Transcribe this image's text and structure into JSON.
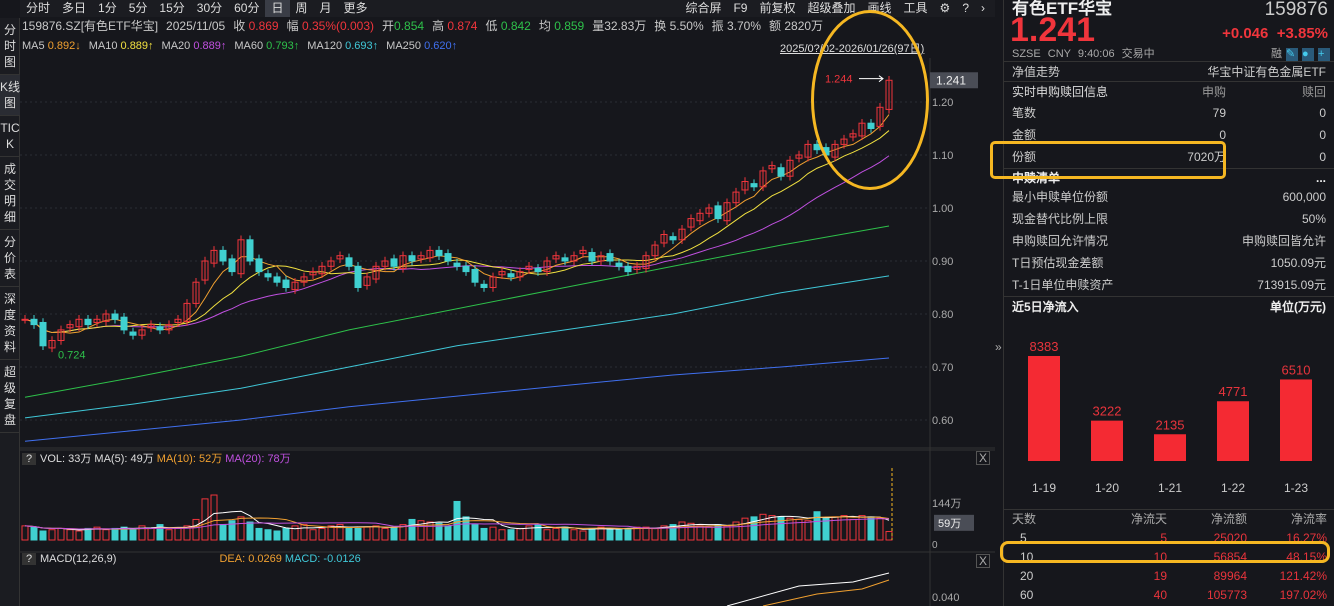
{
  "toolbar": {
    "periods": [
      "分时",
      "多日",
      "1分",
      "5分",
      "15分",
      "30分",
      "60分",
      "日",
      "周",
      "月",
      "更多"
    ],
    "selected": "日",
    "right": [
      "综合屏",
      "F9",
      "前复权",
      "超级叠加",
      "画线",
      "工具"
    ]
  },
  "sidebar": [
    "分时图",
    "K线图",
    "TICK",
    "成交明细",
    "分价表",
    "深度资料",
    "超级复盘"
  ],
  "info": {
    "symbol": "159876.SZ[有色ETF华宝]",
    "date": "2025/11/05",
    "close_label": "收",
    "close": "0.869",
    "chg_label": "幅",
    "chg": "0.35%(0.003)",
    "open_label": "开",
    "open": "0.854",
    "high_label": "高",
    "high": "0.874",
    "low_label": "低",
    "low": "0.842",
    "avg_label": "均",
    "avg": "0.859",
    "vol": "量32.83万",
    "turnover": "换 5.50%",
    "amp": "振 3.70%",
    "amount": "额 2820万"
  },
  "ma": [
    {
      "label": "MA5",
      "value": "0.892↓",
      "color": "#f0a030"
    },
    {
      "label": "MA10",
      "value": "0.889↑",
      "color": "#f0e040"
    },
    {
      "label": "MA20",
      "value": "0.889↑",
      "color": "#c050e0"
    },
    {
      "label": "MA60",
      "value": "0.793↑",
      "color": "#2ec04a"
    },
    {
      "label": "MA120",
      "value": "0.693↑",
      "color": "#40c8d8"
    },
    {
      "label": "MA250",
      "value": "0.620↑",
      "color": "#4070f0"
    }
  ],
  "range": "2025/0?/02-2026/01/26(97日)",
  "chart_data": [
    {
      "type": "candlestick",
      "ylim": [
        0.58,
        1.26
      ],
      "yticks": [
        "1.20",
        "1.10",
        "1.00",
        "0.90",
        "0.80",
        "0.70",
        "0.60"
      ],
      "current_price_label": "1.241",
      "high_marker": "1.244",
      "low_marker": "0.724",
      "close": [
        0.79,
        0.78,
        0.74,
        0.75,
        0.77,
        0.78,
        0.79,
        0.78,
        0.79,
        0.8,
        0.79,
        0.77,
        0.76,
        0.77,
        0.78,
        0.77,
        0.78,
        0.79,
        0.82,
        0.86,
        0.9,
        0.92,
        0.9,
        0.88,
        0.94,
        0.9,
        0.88,
        0.87,
        0.86,
        0.85,
        0.86,
        0.87,
        0.88,
        0.89,
        0.9,
        0.91,
        0.89,
        0.85,
        0.87,
        0.89,
        0.9,
        0.89,
        0.91,
        0.9,
        0.91,
        0.92,
        0.91,
        0.9,
        0.89,
        0.88,
        0.86,
        0.85,
        0.87,
        0.88,
        0.87,
        0.88,
        0.89,
        0.88,
        0.9,
        0.91,
        0.9,
        0.91,
        0.92,
        0.9,
        0.91,
        0.9,
        0.89,
        0.88,
        0.89,
        0.91,
        0.93,
        0.95,
        0.94,
        0.96,
        0.98,
        0.99,
        1.0,
        0.98,
        1.01,
        1.03,
        1.05,
        1.04,
        1.07,
        1.08,
        1.06,
        1.09,
        1.1,
        1.12,
        1.11,
        1.1,
        1.12,
        1.13,
        1.14,
        1.16,
        1.15,
        1.19,
        1.241
      ],
      "ma60": [
        0.643,
        0.68,
        0.72,
        0.77,
        0.81,
        0.85,
        0.89,
        0.93,
        0.966
      ],
      "ma120": [
        0.604,
        0.63,
        0.66,
        0.7,
        0.74,
        0.77,
        0.8,
        0.84,
        0.872
      ],
      "ma250": [
        0.56,
        0.58,
        0.6,
        0.625,
        0.645,
        0.665,
        0.685,
        0.7,
        0.717
      ]
    },
    {
      "type": "bar",
      "title": "VOL: 33万",
      "ma5": "MA(5): 49万",
      "ma10": "MA(10): 52万",
      "ma20": "MA(20): 78万",
      "yticks": [
        "144万",
        "0"
      ],
      "current_label": "59万",
      "values": [
        55,
        50,
        35,
        40,
        45,
        40,
        35,
        45,
        50,
        40,
        45,
        50,
        40,
        55,
        45,
        60,
        40,
        45,
        55,
        80,
        160,
        175,
        60,
        75,
        90,
        70,
        45,
        40,
        35,
        45,
        55,
        60,
        40,
        45,
        55,
        60,
        50,
        45,
        50,
        55,
        45,
        50,
        60,
        80,
        75,
        70,
        65,
        55,
        150,
        90,
        60,
        45,
        50,
        40,
        40,
        45,
        55,
        60,
        40,
        45,
        50,
        40,
        35,
        45,
        50,
        45,
        40,
        45,
        50,
        50,
        45,
        55,
        60,
        70,
        65,
        55,
        50,
        60,
        55,
        70,
        85,
        90,
        100,
        95,
        90,
        85,
        80,
        75,
        110,
        85,
        90,
        95,
        80,
        95,
        90,
        85,
        33
      ]
    },
    {
      "type": "line",
      "title": "MACD(12,26,9)",
      "dea": "DEA: 0.0269",
      "macd": "MACD: -0.0126",
      "yticks": [
        "0.040"
      ]
    }
  ],
  "quote": {
    "name": "有色ETF华宝",
    "code": "159876",
    "price": "1.241",
    "change": "+0.046",
    "pct": "+3.85%",
    "exchange": "SZSE",
    "currency": "CNY",
    "time": "9:40:06",
    "status": "交易中",
    "margin": "融"
  },
  "nav": {
    "label": "净值走势",
    "value": "华宝中证有色金属ETF"
  },
  "realtime": {
    "title": "实时申购赎回信息",
    "col1": "申购",
    "col2": "赎回",
    "rows": [
      {
        "label": "笔数",
        "a": "79",
        "b": "0"
      },
      {
        "label": "金额",
        "a": "0",
        "b": "0"
      },
      {
        "label": "份额",
        "a": "7020万",
        "b": "0"
      }
    ]
  },
  "list": {
    "title": "申赎清单",
    "more": "...",
    "rows": [
      {
        "label": "最小申赎单位份额",
        "value": "600,000"
      },
      {
        "label": "现金替代比例上限",
        "value": "50%"
      },
      {
        "label": "申购赎回允许情况",
        "value": "申购赎回皆允许"
      },
      {
        "label": "T日预估现金差额",
        "value": "1050.09元"
      },
      {
        "label": "T-1日单位申赎资产",
        "value": "713915.09元"
      }
    ]
  },
  "flow": {
    "title": "近5日净流入",
    "unit": "单位(万元)",
    "bars": [
      {
        "date": "1-19",
        "value": 8383
      },
      {
        "date": "1-20",
        "value": 3222
      },
      {
        "date": "1-21",
        "value": 2135
      },
      {
        "date": "1-22",
        "value": 4771
      },
      {
        "date": "1-23",
        "value": 6510
      }
    ],
    "headers": [
      "天数",
      "净流天",
      "净流额",
      "净流率"
    ],
    "rows": [
      [
        "5",
        "5",
        "25020",
        "16.27%"
      ],
      [
        "10",
        "10",
        "56854",
        "48.15%"
      ],
      [
        "20",
        "19",
        "89964",
        "121.42%"
      ],
      [
        "60",
        "40",
        "105773",
        "197.02%"
      ]
    ]
  },
  "colors": {
    "up": "#f0353c",
    "down": "#40d0d0",
    "highlight": "#f5b722"
  }
}
